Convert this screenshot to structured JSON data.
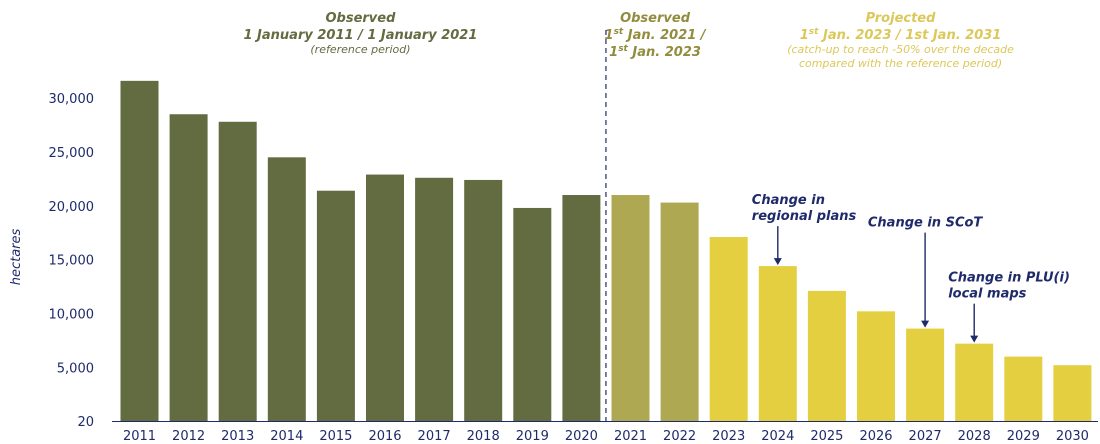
{
  "chart_data": {
    "type": "bar",
    "ylabel": "hectares",
    "categories": [
      "2011",
      "2012",
      "2013",
      "2014",
      "2015",
      "2016",
      "2017",
      "2018",
      "2019",
      "2020",
      "2021",
      "2022",
      "2023",
      "2024",
      "2025",
      "2026",
      "2027",
      "2028",
      "2029",
      "2030"
    ],
    "values": [
      31600,
      28500,
      27800,
      24500,
      21400,
      22900,
      22600,
      22400,
      19800,
      21000,
      21000,
      20300,
      17100,
      14400,
      12100,
      10200,
      8600,
      7200,
      6000,
      5200
    ],
    "y_ticks": [
      {
        "value": 20,
        "label": "20"
      },
      {
        "value": 5000,
        "label": "5,000"
      },
      {
        "value": 10000,
        "label": "10,000"
      },
      {
        "value": 15000,
        "label": "15,000"
      },
      {
        "value": 20000,
        "label": "20,000"
      },
      {
        "value": 25000,
        "label": "25,000"
      },
      {
        "value": 30000,
        "label": "30,000"
      }
    ],
    "ylim": [
      20,
      34000
    ],
    "grid": false,
    "period_colors": {
      "observed_reference": "#636b41",
      "observed_recent": "#afa853",
      "projected": "#e3cf40"
    },
    "periods": [
      {
        "key": "observed_reference",
        "from": "2011",
        "to": "2020",
        "title_lines": [
          "Observed",
          "1 January 2011 / 1 January 2021"
        ],
        "subtitle_lines": [
          "(reference period)"
        ],
        "color": "#636b41"
      },
      {
        "key": "observed_recent",
        "from": "2021",
        "to": "2022",
        "title_lines": [
          {
            "pre": "1",
            "sup": "st",
            "post": " Jan. 2021 /"
          },
          {
            "pre": "1",
            "sup": "st",
            "post": " Jan. 2023"
          }
        ],
        "title_head": "Observed",
        "subtitle_lines": [],
        "color": "#928c3e"
      },
      {
        "key": "projected",
        "from": "2023",
        "to": "2030",
        "title_head": "Projected",
        "title_lines": [
          {
            "pre": "1",
            "sup": "st",
            "post": " Jan. 2023 / 1st Jan. 2031"
          }
        ],
        "subtitle_lines": [
          "(catch-up to reach -50% over the decade",
          "compared with the reference period)"
        ],
        "color": "#dcc85a"
      }
    ],
    "divider_after": "2020",
    "annotations": [
      {
        "lines": [
          "Change in",
          "regional plans"
        ],
        "target": "2024",
        "align": "start"
      },
      {
        "lines": [
          "Change in SCoT"
        ],
        "target": "2027",
        "align": "middle"
      },
      {
        "lines": [
          "Change in PLU(i)",
          "local maps"
        ],
        "target": "2028",
        "align": "start"
      }
    ],
    "annotation_color": "#1f2a6b"
  }
}
